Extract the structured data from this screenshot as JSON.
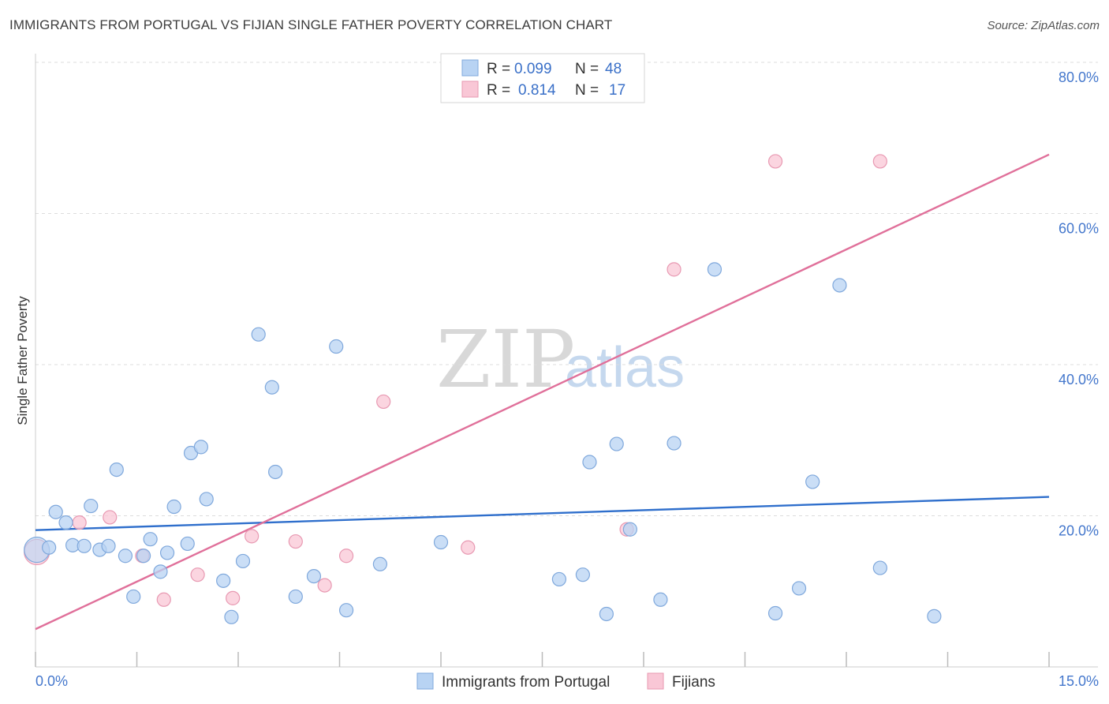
{
  "title": "IMMIGRANTS FROM PORTUGAL VS FIJIAN SINGLE FATHER POVERTY CORRELATION CHART",
  "source": "Source: ZipAtlas.com",
  "watermark": {
    "zip": "ZIP",
    "atlas": "atlas"
  },
  "colors": {
    "blue_fill": "#b8d3f3",
    "blue_stroke": "#7fa8dc",
    "blue_line": "#2f6fcc",
    "pink_fill": "#f9c7d6",
    "pink_stroke": "#e899b2",
    "pink_line": "#e0709a",
    "grid": "#dddddd",
    "axis_label": "#4477cc"
  },
  "legend": {
    "rows": [
      {
        "r_label": "R =",
        "r_value": "0.099",
        "n_label": "N =",
        "n_value": "48",
        "series": "blue"
      },
      {
        "r_label": "R =",
        "r_value": "0.814",
        "n_label": "N =",
        "n_value": "17",
        "series": "pink"
      }
    ]
  },
  "chart_data": {
    "type": "scatter",
    "title": "IMMIGRANTS FROM PORTUGAL VS FIJIAN SINGLE FATHER POVERTY CORRELATION CHART",
    "xlabel": "",
    "ylabel": "Single Father Poverty",
    "xlim": [
      0,
      15
    ],
    "ylim": [
      0,
      82
    ],
    "x_tick_labels": [
      "0.0%",
      "15.0%"
    ],
    "y_ticks": [
      20,
      40,
      60,
      80
    ],
    "y_tick_labels": [
      "20.0%",
      "40.0%",
      "60.0%",
      "80.0%"
    ],
    "grid": true,
    "legend_position": "bottom-center",
    "series": [
      {
        "name": "Immigrants from Portugal",
        "color": "blue",
        "r": 0.099,
        "n": 48,
        "trend": {
          "x": [
            0,
            15
          ],
          "y": [
            18.1,
            22.5
          ]
        },
        "points": [
          {
            "x": 0.02,
            "y": 15.5,
            "big": true
          },
          {
            "x": 0.2,
            "y": 15.8
          },
          {
            "x": 0.3,
            "y": 20.5
          },
          {
            "x": 0.45,
            "y": 19.1
          },
          {
            "x": 0.55,
            "y": 16.1
          },
          {
            "x": 0.72,
            "y": 16.0
          },
          {
            "x": 0.82,
            "y": 21.3
          },
          {
            "x": 0.95,
            "y": 15.5
          },
          {
            "x": 1.08,
            "y": 16.0
          },
          {
            "x": 1.2,
            "y": 26.1
          },
          {
            "x": 1.33,
            "y": 14.7
          },
          {
            "x": 1.45,
            "y": 9.3
          },
          {
            "x": 1.6,
            "y": 14.7
          },
          {
            "x": 1.7,
            "y": 16.9
          },
          {
            "x": 1.85,
            "y": 12.6
          },
          {
            "x": 1.95,
            "y": 15.1
          },
          {
            "x": 2.05,
            "y": 21.2
          },
          {
            "x": 2.25,
            "y": 16.3
          },
          {
            "x": 2.3,
            "y": 28.3
          },
          {
            "x": 2.45,
            "y": 29.1
          },
          {
            "x": 2.53,
            "y": 22.2
          },
          {
            "x": 2.78,
            "y": 11.4
          },
          {
            "x": 2.9,
            "y": 6.6
          },
          {
            "x": 3.07,
            "y": 14.0
          },
          {
            "x": 3.3,
            "y": 44.0
          },
          {
            "x": 3.5,
            "y": 37.0
          },
          {
            "x": 3.55,
            "y": 25.8
          },
          {
            "x": 3.85,
            "y": 9.3
          },
          {
            "x": 4.12,
            "y": 12.0
          },
          {
            "x": 4.45,
            "y": 42.4
          },
          {
            "x": 4.6,
            "y": 7.5
          },
          {
            "x": 5.1,
            "y": 13.6
          },
          {
            "x": 6.0,
            "y": 16.5
          },
          {
            "x": 7.75,
            "y": 11.6
          },
          {
            "x": 8.1,
            "y": 12.2
          },
          {
            "x": 8.2,
            "y": 27.1
          },
          {
            "x": 8.45,
            "y": 7.0
          },
          {
            "x": 8.6,
            "y": 29.5
          },
          {
            "x": 8.8,
            "y": 18.2
          },
          {
            "x": 9.25,
            "y": 8.9
          },
          {
            "x": 9.45,
            "y": 29.6
          },
          {
            "x": 10.05,
            "y": 52.6
          },
          {
            "x": 10.95,
            "y": 7.1
          },
          {
            "x": 11.3,
            "y": 10.4
          },
          {
            "x": 11.5,
            "y": 24.5
          },
          {
            "x": 11.9,
            "y": 50.5
          },
          {
            "x": 12.5,
            "y": 13.1
          },
          {
            "x": 13.3,
            "y": 6.7
          }
        ]
      },
      {
        "name": "Fijians",
        "color": "pink",
        "r": 0.814,
        "n": 17,
        "trend": {
          "x": [
            0,
            15
          ],
          "y": [
            5.0,
            67.8
          ]
        },
        "points": [
          {
            "x": 0.02,
            "y": 15.2,
            "big": true
          },
          {
            "x": 0.65,
            "y": 19.1
          },
          {
            "x": 1.1,
            "y": 19.8
          },
          {
            "x": 1.58,
            "y": 14.7
          },
          {
            "x": 1.9,
            "y": 8.9
          },
          {
            "x": 2.4,
            "y": 12.2
          },
          {
            "x": 2.92,
            "y": 9.1
          },
          {
            "x": 3.2,
            "y": 17.3
          },
          {
            "x": 3.85,
            "y": 16.6
          },
          {
            "x": 4.28,
            "y": 10.8
          },
          {
            "x": 4.6,
            "y": 14.7
          },
          {
            "x": 5.15,
            "y": 35.1
          },
          {
            "x": 6.4,
            "y": 15.8
          },
          {
            "x": 8.75,
            "y": 18.2
          },
          {
            "x": 9.45,
            "y": 52.6
          },
          {
            "x": 10.95,
            "y": 66.9
          },
          {
            "x": 12.5,
            "y": 66.9
          }
        ]
      }
    ]
  }
}
